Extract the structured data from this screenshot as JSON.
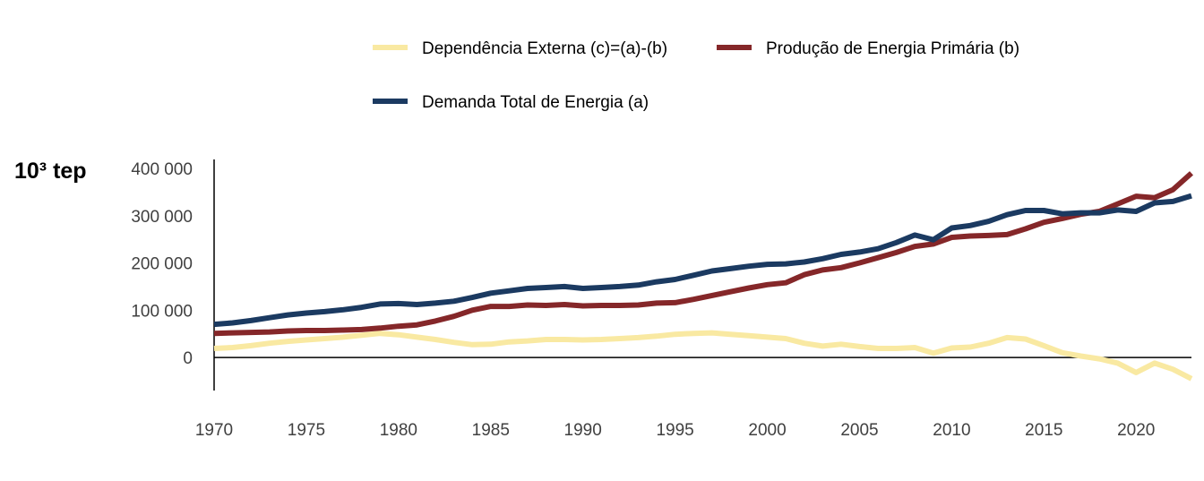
{
  "chart_data": {
    "type": "line",
    "title": "",
    "xlabel": "",
    "ylabel": "10³ tep",
    "xlim": [
      1970,
      2023
    ],
    "ylim": [
      -70000,
      400000
    ],
    "x_ticks": [
      1970,
      1975,
      1980,
      1985,
      1990,
      1995,
      2000,
      2005,
      2010,
      2015,
      2020
    ],
    "x_tick_labels": [
      "1970",
      "1975",
      "1980",
      "1985",
      "1990",
      "1995",
      "2000",
      "2005",
      "2010",
      "2015",
      "2020"
    ],
    "y_ticks": [
      0,
      100000,
      200000,
      300000,
      400000
    ],
    "y_tick_labels": [
      "0",
      "100 000",
      "200 000",
      "300 000",
      "400 000"
    ],
    "grid": false,
    "legend_position": "top",
    "x": [
      1970,
      1971,
      1972,
      1973,
      1974,
      1975,
      1976,
      1977,
      1978,
      1979,
      1980,
      1981,
      1982,
      1983,
      1984,
      1985,
      1986,
      1987,
      1988,
      1989,
      1990,
      1991,
      1992,
      1993,
      1994,
      1995,
      1996,
      1997,
      1998,
      1999,
      2000,
      2001,
      2002,
      2003,
      2004,
      2005,
      2006,
      2007,
      2008,
      2009,
      2010,
      2011,
      2012,
      2013,
      2014,
      2015,
      2016,
      2017,
      2018,
      2019,
      2020,
      2021,
      2022,
      2023
    ],
    "series": [
      {
        "name": "Dependência Externa (c)=(a)-(b)",
        "color": "#f9e9a2",
        "values": [
          19000,
          21000,
          25000,
          30000,
          34000,
          37000,
          40000,
          43000,
          47000,
          51000,
          48000,
          43000,
          38000,
          32000,
          27000,
          28000,
          33000,
          35000,
          38000,
          38000,
          37000,
          38000,
          40000,
          42000,
          45000,
          49000,
          51000,
          52000,
          49000,
          46000,
          43000,
          40000,
          30000,
          24000,
          28000,
          23000,
          19000,
          19000,
          21000,
          9000,
          20000,
          22000,
          30000,
          42000,
          39000,
          25000,
          10000,
          3000,
          -3000,
          -12000,
          -32000,
          -12000,
          -25000,
          -45000
        ]
      },
      {
        "name": "Produção de Energia Primária (b)",
        "color": "#852729",
        "values": [
          51000,
          52000,
          53000,
          54000,
          56000,
          57000,
          57000,
          58000,
          59000,
          62000,
          66000,
          69000,
          77000,
          87000,
          100000,
          108000,
          108000,
          111000,
          110000,
          112000,
          109000,
          110000,
          110000,
          111000,
          115000,
          116000,
          123000,
          131000,
          139000,
          147000,
          154000,
          158000,
          175000,
          185000,
          190000,
          200000,
          211000,
          222000,
          235000,
          240000,
          254000,
          257000,
          258000,
          260000,
          272000,
          286000,
          294000,
          303000,
          309000,
          325000,
          341000,
          338000,
          355000,
          390000
        ]
      },
      {
        "name": "Demanda Total de Energia (a)",
        "color": "#1b3a61",
        "values": [
          70000,
          73000,
          78000,
          84000,
          90000,
          94000,
          97000,
          101000,
          106000,
          113000,
          114000,
          112000,
          115000,
          119000,
          127000,
          136000,
          141000,
          146000,
          148000,
          150000,
          146000,
          148000,
          150000,
          153000,
          160000,
          165000,
          174000,
          183000,
          188000,
          193000,
          197000,
          198000,
          202000,
          209000,
          218000,
          223000,
          230000,
          243000,
          259000,
          249000,
          274000,
          279000,
          288000,
          302000,
          311000,
          311000,
          304000,
          306000,
          306000,
          312000,
          309000,
          327000,
          330000,
          342000
        ]
      }
    ]
  }
}
